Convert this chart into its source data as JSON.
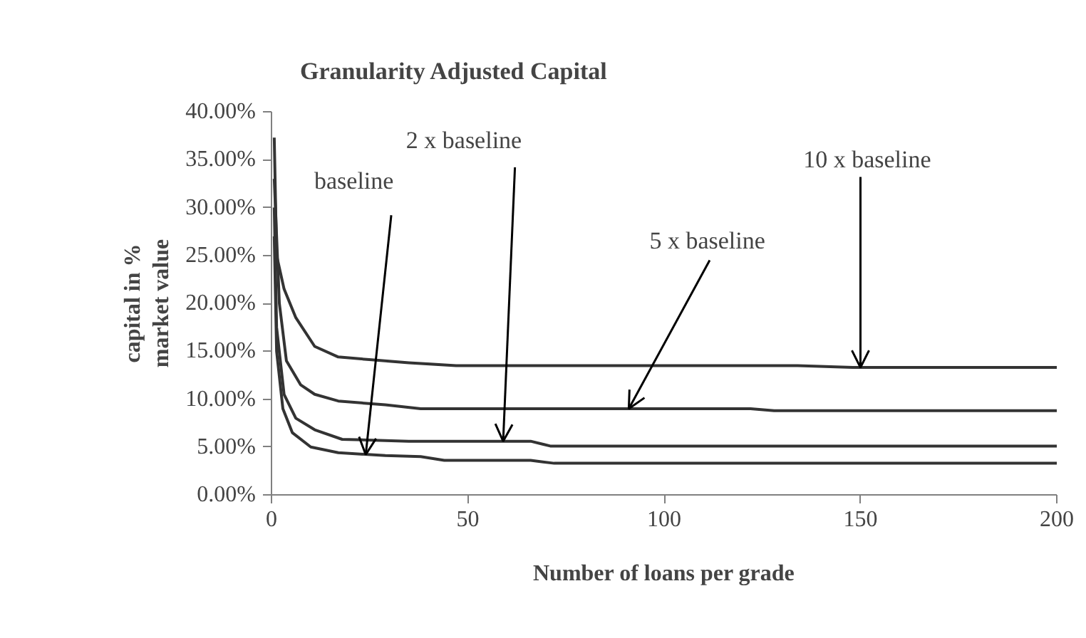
{
  "chart_data": {
    "type": "line",
    "title": "Granularity Adjusted Capital",
    "xlabel": "Number of loans per grade",
    "ylabel": "capital in % market value",
    "xlim": [
      0,
      200
    ],
    "ylim": [
      0,
      40
    ],
    "xticks": [
      0,
      50,
      100,
      150,
      200
    ],
    "yticks": [
      {
        "value": 0,
        "label": "0.00%"
      },
      {
        "value": 5,
        "label": "5.00%"
      },
      {
        "value": 10,
        "label": "10.00%"
      },
      {
        "value": 15,
        "label": "15.00%"
      },
      {
        "value": 20,
        "label": "20.00%"
      },
      {
        "value": 25,
        "label": "25.00%"
      },
      {
        "value": 30,
        "label": "30.00%"
      },
      {
        "value": 35,
        "label": "35.00%"
      },
      {
        "value": 40,
        "label": "40.00%"
      }
    ],
    "grid": false,
    "series": [
      {
        "color": "#333333",
        "x": [
          0.7,
          1.3,
          3.2,
          6.2,
          11,
          17,
          25.5,
          35,
          47,
          134,
          148,
          200
        ],
        "values": [
          37.3,
          25,
          21.5,
          18.5,
          15.5,
          14.4,
          14.1,
          13.8,
          13.5,
          13.5,
          13.3,
          13.3
        ]
      },
      {
        "color": "#333333",
        "x": [
          0.7,
          2,
          3.8,
          7.4,
          11,
          17,
          29,
          38,
          122,
          128,
          200
        ],
        "values": [
          33,
          20,
          14,
          11.5,
          10.5,
          9.8,
          9.4,
          9.0,
          9.0,
          8.8,
          8.8
        ]
      },
      {
        "color": "#333333",
        "x": [
          0.7,
          1.3,
          3.2,
          6.2,
          11,
          18,
          35,
          66,
          71,
          200
        ],
        "values": [
          30,
          17.5,
          10.5,
          8.0,
          6.8,
          5.8,
          5.6,
          5.6,
          5.1,
          5.1
        ]
      },
      {
        "color": "#333333",
        "x": [
          0.7,
          1.3,
          2.9,
          5.3,
          10,
          17,
          29,
          38,
          44,
          66,
          72,
          200
        ],
        "values": [
          27,
          15,
          9,
          6.5,
          5,
          4.4,
          4.1,
          4.0,
          3.6,
          3.6,
          3.3,
          3.3
        ]
      }
    ],
    "annotations": [
      {
        "text": "baseline",
        "x": 24,
        "y": 4.2
      },
      {
        "text": "2 x baseline",
        "x": 59,
        "y": 5.6
      },
      {
        "text": "5 x baseline",
        "x": 91,
        "y": 9.0
      },
      {
        "text": "10 x baseline",
        "x": 150,
        "y": 13.3
      }
    ]
  }
}
